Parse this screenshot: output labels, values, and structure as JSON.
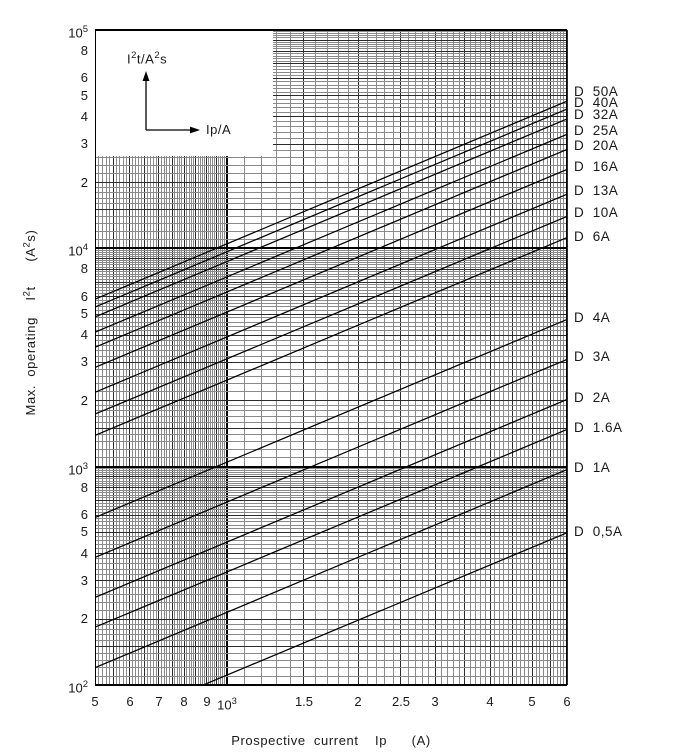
{
  "figure": {
    "background": "#ffffff",
    "line_color": "#000000",
    "grid_thin_color": "#8a8a8a",
    "grid_medium_color": "#2b2b2b",
    "grid_major_color": "#000000"
  },
  "chart_data": {
    "type": "line",
    "x_scale": "log",
    "y_scale": "log",
    "xlim": [
      500,
      6000
    ],
    "ylim": [
      100,
      100000
    ],
    "grid": "log minor grid on, both axes",
    "legend_position": "labels at right edge of each line",
    "xlabel": "Prospective current  Ip   (A)",
    "ylabel_parts": [
      {
        "t": "Max. operating  I"
      },
      {
        "t": "2",
        "sup": true
      },
      {
        "t": "t   (A"
      },
      {
        "t": "2",
        "sup": true
      },
      {
        "t": "s)"
      }
    ],
    "x_ticks": [
      {
        "v": 500,
        "label": "5"
      },
      {
        "v": 600,
        "label": "6"
      },
      {
        "v": 700,
        "label": "7"
      },
      {
        "v": 800,
        "label": "8"
      },
      {
        "v": 900,
        "label": "9"
      },
      {
        "v": 1000,
        "label": "10",
        "sup": "3"
      },
      {
        "v": 1500,
        "label": "1.5"
      },
      {
        "v": 2000,
        "label": "2"
      },
      {
        "v": 2500,
        "label": "2.5"
      },
      {
        "v": 3000,
        "label": "3"
      },
      {
        "v": 4000,
        "label": "4"
      },
      {
        "v": 5000,
        "label": "5"
      },
      {
        "v": 6000,
        "label": "6"
      }
    ],
    "y_ticks": [
      {
        "v": 100000,
        "label": "10",
        "sup": "5"
      },
      {
        "v": 80000,
        "label": "8"
      },
      {
        "v": 60000,
        "label": "6"
      },
      {
        "v": 50000,
        "label": "5"
      },
      {
        "v": 40000,
        "label": "4"
      },
      {
        "v": 30000,
        "label": "3"
      },
      {
        "v": 20000,
        "label": "2"
      },
      {
        "v": 10000,
        "label": "10",
        "sup": "4"
      },
      {
        "v": 8000,
        "label": "8"
      },
      {
        "v": 6000,
        "label": "6"
      },
      {
        "v": 5000,
        "label": "5"
      },
      {
        "v": 4000,
        "label": "4"
      },
      {
        "v": 3000,
        "label": "3"
      },
      {
        "v": 2000,
        "label": "2"
      },
      {
        "v": 1000,
        "label": "10",
        "sup": "3"
      },
      {
        "v": 800,
        "label": "8"
      },
      {
        "v": 600,
        "label": "6"
      },
      {
        "v": 500,
        "label": "5"
      },
      {
        "v": 400,
        "label": "4"
      },
      {
        "v": 300,
        "label": "3"
      },
      {
        "v": 200,
        "label": "2"
      },
      {
        "v": 100,
        "label": "10",
        "sup": "2"
      }
    ],
    "series": [
      {
        "name": "D  50A",
        "points": [
          [
            500,
            5850
          ],
          [
            6000,
            47200
          ]
        ],
        "label_dy": -9
      },
      {
        "name": "D  40A",
        "points": [
          [
            500,
            5380
          ],
          [
            6000,
            43400
          ]
        ],
        "label_dy": -6
      },
      {
        "name": "D  32A",
        "points": [
          [
            500,
            4850
          ],
          [
            6000,
            39100
          ]
        ],
        "label_dy": -4
      },
      {
        "name": "D  25A",
        "points": [
          [
            500,
            4130
          ],
          [
            6000,
            33300
          ]
        ],
        "label_dy": -3
      },
      {
        "name": "D  20A",
        "points": [
          [
            500,
            3520
          ],
          [
            6000,
            28400
          ]
        ],
        "label_dy": -3
      },
      {
        "name": "D  16A",
        "points": [
          [
            500,
            2850
          ],
          [
            6000,
            23000
          ]
        ],
        "label_dy": -2
      },
      {
        "name": "D  13A",
        "points": [
          [
            500,
            2190
          ],
          [
            6000,
            17700
          ]
        ],
        "label_dy": -3
      },
      {
        "name": "D  10A",
        "points": [
          [
            500,
            1740
          ],
          [
            6000,
            14000
          ]
        ],
        "label_dy": -3
      },
      {
        "name": "D  6A",
        "points": [
          [
            500,
            1390
          ],
          [
            6000,
            11200
          ]
        ],
        "label_dy": -1
      },
      {
        "name": "D  4A",
        "points": [
          [
            500,
            585
          ],
          [
            6000,
            4720
          ]
        ],
        "label_dy": -2
      },
      {
        "name": "D  3A",
        "points": [
          [
            500,
            384
          ],
          [
            6000,
            3100
          ]
        ],
        "label_dy": -2
      },
      {
        "name": "D  2A",
        "points": [
          [
            500,
            252
          ],
          [
            6000,
            2030
          ]
        ],
        "label_dy": -2
      },
      {
        "name": "D  1.6A",
        "points": [
          [
            500,
            184
          ],
          [
            6000,
            1480
          ]
        ],
        "label_dy": -1
      },
      {
        "name": "D  1A",
        "points": [
          [
            500,
            120
          ],
          [
            6000,
            970
          ]
        ],
        "label_dy": -2
      },
      {
        "name": "D  0,5A",
        "points": [
          [
            500,
            62
          ],
          [
            6000,
            498
          ]
        ],
        "label_dy": -1
      }
    ],
    "inset_legend": {
      "y_label_parts": [
        {
          "t": "I"
        },
        {
          "t": "2",
          "sup": true
        },
        {
          "t": "t/A"
        },
        {
          "t": "2",
          "sup": true
        },
        {
          "t": "s"
        }
      ],
      "x_label": "Ip/A"
    }
  }
}
